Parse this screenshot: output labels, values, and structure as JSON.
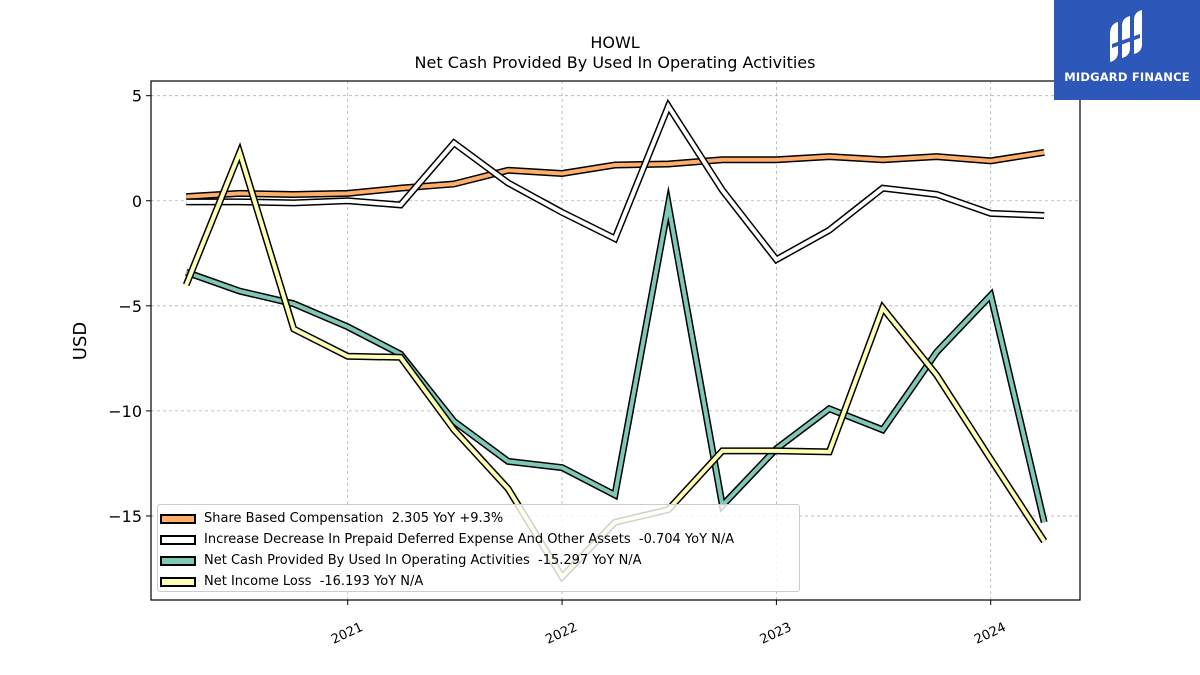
{
  "brand": {
    "name": "MIDGARD FINANCE",
    "background": "#2d57b8"
  },
  "chart_data": {
    "type": "line",
    "title": "HOWL",
    "subtitle": "Net Cash Provided By Used In Operating Activities",
    "xlabel": "",
    "ylabel": "USD",
    "x": [
      "2020-04-01",
      "2020-07-01",
      "2020-10-01",
      "2021-01-01",
      "2021-04-01",
      "2021-07-01",
      "2021-10-01",
      "2022-01-01",
      "2022-04-01",
      "2022-07-01",
      "2022-10-01",
      "2023-01-01",
      "2023-04-01",
      "2023-07-01",
      "2023-10-01",
      "2024-01-01",
      "2024-04-01"
    ],
    "x_tick_labels": [
      "2021",
      "2022",
      "2023",
      "2024"
    ],
    "x_tick_dates": [
      "2021-01-01",
      "2022-01-01",
      "2023-01-01",
      "2024-01-01"
    ],
    "xlim": [
      "2020-02-01",
      "2024-06-01"
    ],
    "ylim": [
      -19,
      5.7
    ],
    "y_ticks": [
      5,
      0,
      -5,
      -10,
      -15
    ],
    "y_tick_labels": [
      "5",
      "0",
      "−5",
      "−10",
      "−15"
    ],
    "grid": true,
    "legend_position": "lower-left",
    "series": [
      {
        "name": "Share Based Compensation",
        "legend_label": "Share Based Compensation  2.305 YoY +9.3%",
        "color": "#fdae6b",
        "values": [
          0.2,
          0.35,
          0.3,
          0.35,
          0.6,
          0.8,
          1.45,
          1.3,
          1.7,
          1.75,
          1.95,
          1.95,
          2.1,
          1.95,
          2.1,
          1.9,
          2.3
        ]
      },
      {
        "name": "Increase Decrease In Prepaid Deferred Expense And Other Assets",
        "legend_label": "Increase Decrease In Prepaid Deferred Expense And Other Assets  -0.704 YoY N/A",
        "color": "#ffffff",
        "values": [
          -0.05,
          -0.05,
          -0.1,
          0.0,
          -0.2,
          2.75,
          0.85,
          -0.55,
          -1.8,
          4.5,
          0.5,
          -2.8,
          -1.4,
          0.6,
          0.3,
          -0.6,
          -0.7
        ]
      },
      {
        "name": "Net Cash Provided By Used In Operating Activities",
        "legend_label": "Net Cash Provided By Used In Operating Activities  -15.297 YoY N/A",
        "color": "#7fc8b8",
        "values": [
          -3.4,
          -4.3,
          -4.9,
          -6.0,
          -7.3,
          -10.5,
          -12.4,
          -12.7,
          -14.0,
          -0.2,
          -14.5,
          -11.8,
          -9.9,
          -10.9,
          -7.2,
          -4.5,
          -15.3
        ]
      },
      {
        "name": "Net Income Loss",
        "legend_label": "Net Income Loss  -16.193 YoY N/A",
        "color": "#ffffb3",
        "values": [
          -4.0,
          2.3,
          -6.1,
          -7.4,
          -7.45,
          -10.9,
          -13.7,
          -17.9,
          -15.3,
          -14.7,
          -11.9,
          -11.9,
          -11.95,
          -5.1,
          -8.3,
          -12.3,
          -16.2
        ]
      }
    ]
  }
}
